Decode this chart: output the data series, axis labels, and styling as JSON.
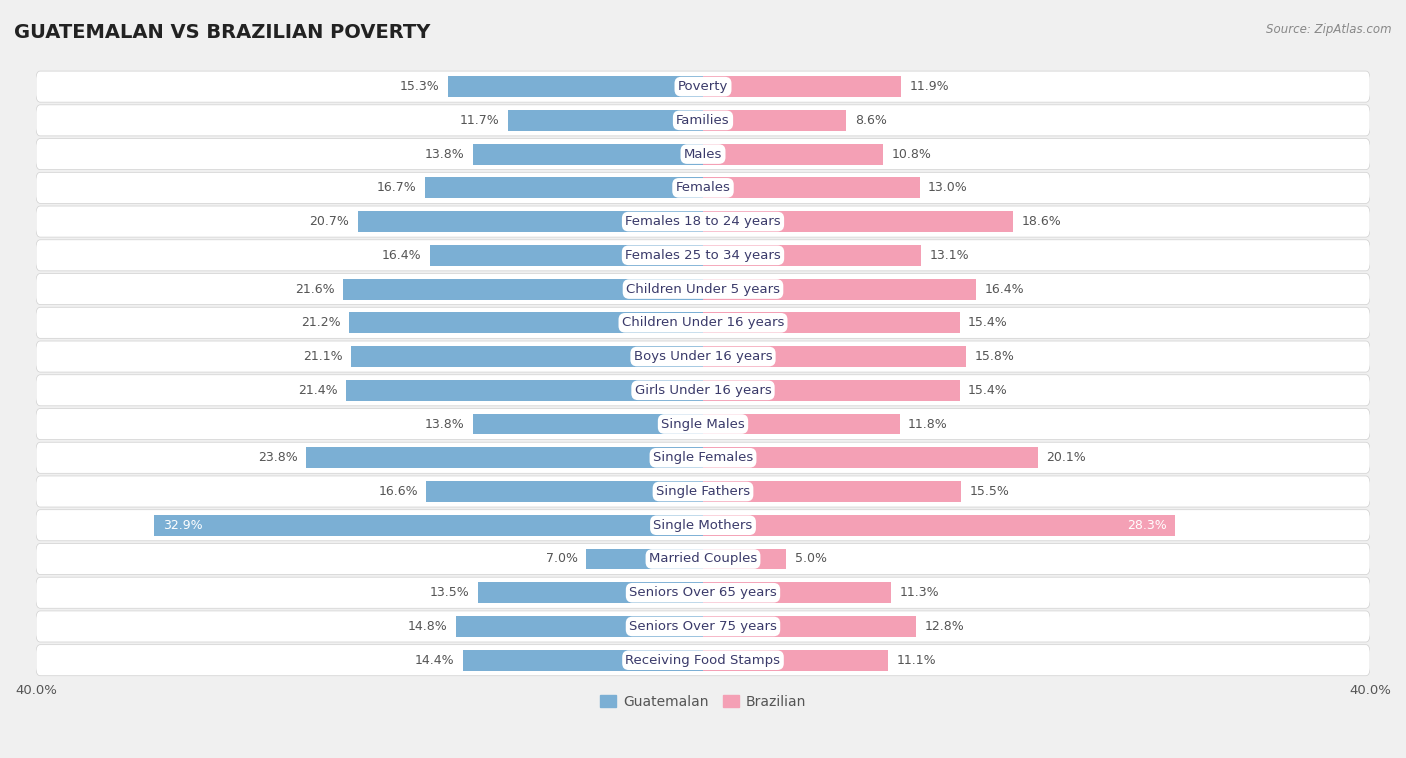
{
  "title": "GUATEMALAN VS BRAZILIAN POVERTY",
  "source": "Source: ZipAtlas.com",
  "categories": [
    "Poverty",
    "Families",
    "Males",
    "Females",
    "Females 18 to 24 years",
    "Females 25 to 34 years",
    "Children Under 5 years",
    "Children Under 16 years",
    "Boys Under 16 years",
    "Girls Under 16 years",
    "Single Males",
    "Single Females",
    "Single Fathers",
    "Single Mothers",
    "Married Couples",
    "Seniors Over 65 years",
    "Seniors Over 75 years",
    "Receiving Food Stamps"
  ],
  "guatemalan": [
    15.3,
    11.7,
    13.8,
    16.7,
    20.7,
    16.4,
    21.6,
    21.2,
    21.1,
    21.4,
    13.8,
    23.8,
    16.6,
    32.9,
    7.0,
    13.5,
    14.8,
    14.4
  ],
  "brazilian": [
    11.9,
    8.6,
    10.8,
    13.0,
    18.6,
    13.1,
    16.4,
    15.4,
    15.8,
    15.4,
    11.8,
    20.1,
    15.5,
    28.3,
    5.0,
    11.3,
    12.8,
    11.1
  ],
  "guatemalan_color": "#7bafd4",
  "brazilian_color": "#f4a0b5",
  "background_color": "#f0f0f0",
  "bar_bg_color": "#ffffff",
  "row_border_color": "#d0d0d0",
  "axis_max": 40.0,
  "bar_height": 0.62,
  "label_fontsize": 9.5,
  "title_fontsize": 14,
  "legend_fontsize": 10,
  "value_fontsize": 9
}
